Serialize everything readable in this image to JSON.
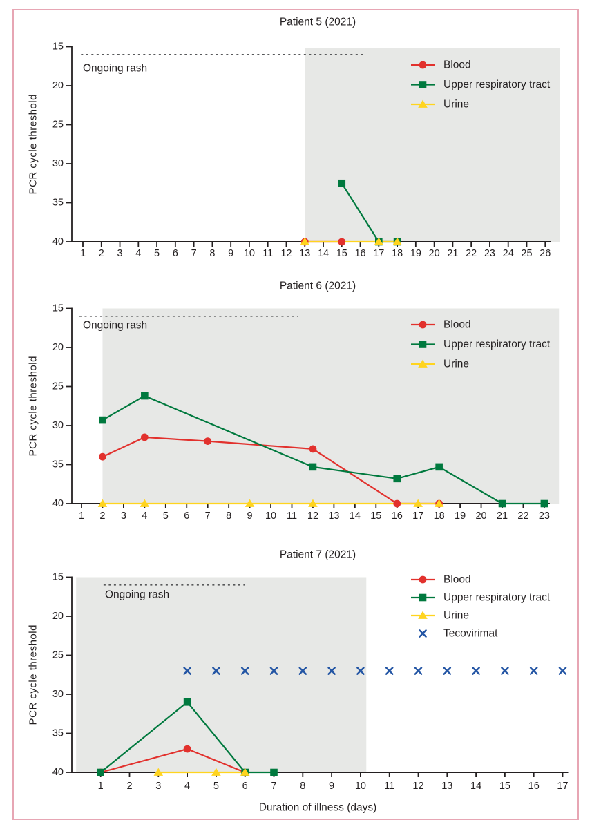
{
  "figure": {
    "y_axis_label": "PCR cycle threshold",
    "x_axis_label": "Duration of illness (days)",
    "rash_annotation": "Ongoing rash",
    "colors": {
      "blood": "#e2312d",
      "upper_respiratory_tract": "#00793e",
      "urine": "#ffd41f",
      "tecovirimat": "#2355a4",
      "shaded_region": "#e7e8e6",
      "frame_border": "#e7a6b4",
      "axis_text": "#231f20",
      "rash_dash": "#57585a"
    }
  },
  "chart_data": [
    {
      "type": "line",
      "title": "Patient 5 (2021)",
      "xlabel": "",
      "ylabel": "PCR cycle threshold",
      "ylim": [
        15,
        40
      ],
      "y_axis_reversed": true,
      "y_ticks": [
        15,
        20,
        25,
        30,
        35,
        40
      ],
      "x_days": 26,
      "shaded_region": {
        "from_day": 13,
        "to_day": 26.8
      },
      "ongoing_rash": {
        "label": "Ongoing rash",
        "from_day": 0.9,
        "to_day": 16.2,
        "ct_level": 16
      },
      "legend_position": "upper right on shaded region",
      "series": [
        {
          "name": "Blood",
          "marker": "circle",
          "color": "#e2312d",
          "line": true,
          "points": [
            [
              13,
              40
            ],
            [
              15,
              40
            ]
          ]
        },
        {
          "name": "Upper respiratory tract",
          "marker": "square",
          "color": "#00793e",
          "line": true,
          "points": [
            [
              15,
              32.5
            ],
            [
              17,
              40
            ],
            [
              18,
              40
            ]
          ]
        },
        {
          "name": "Urine",
          "marker": "triangle",
          "color": "#ffd41f",
          "line": true,
          "points": [
            [
              13,
              40
            ],
            [
              17,
              40
            ],
            [
              18,
              40
            ]
          ]
        }
      ]
    },
    {
      "type": "line",
      "title": "Patient 6 (2021)",
      "xlabel": "",
      "ylabel": "PCR cycle threshold",
      "ylim": [
        15,
        40
      ],
      "y_axis_reversed": true,
      "y_ticks": [
        15,
        20,
        25,
        30,
        35,
        40
      ],
      "x_days": 23,
      "shaded_region": {
        "from_day": 2,
        "to_day": 23.7
      },
      "ongoing_rash": {
        "label": "Ongoing rash",
        "from_day": 0.9,
        "to_day": 11.3,
        "ct_level": 16
      },
      "legend_position": "upper right on shaded region",
      "series": [
        {
          "name": "Blood",
          "marker": "circle",
          "color": "#e2312d",
          "line": true,
          "points": [
            [
              2,
              34
            ],
            [
              4,
              31.5
            ],
            [
              7,
              32
            ],
            [
              12,
              33
            ],
            [
              16,
              40
            ],
            [
              18,
              40
            ]
          ]
        },
        {
          "name": "Upper respiratory tract",
          "marker": "square",
          "color": "#00793e",
          "line": true,
          "points": [
            [
              2,
              29.3
            ],
            [
              4,
              26.2
            ],
            [
              12,
              35.3
            ],
            [
              16,
              36.8
            ],
            [
              18,
              35.3
            ],
            [
              21,
              40
            ],
            [
              23,
              40
            ]
          ]
        },
        {
          "name": "Urine",
          "marker": "triangle",
          "color": "#ffd41f",
          "line": true,
          "points": [
            [
              2,
              40
            ],
            [
              4,
              40
            ],
            [
              9,
              40
            ],
            [
              12,
              40
            ],
            [
              17,
              40
            ],
            [
              18,
              40
            ]
          ]
        }
      ]
    },
    {
      "type": "line",
      "title": "Patient 7 (2021)",
      "xlabel": "Duration of illness (days)",
      "ylabel": "PCR cycle threshold",
      "ylim": [
        15,
        40
      ],
      "y_axis_reversed": true,
      "y_ticks": [
        15,
        20,
        25,
        30,
        35,
        40
      ],
      "x_days": 17,
      "shaded_region": {
        "from_day": 0.15,
        "to_day": 10.2
      },
      "ongoing_rash": {
        "label": "Ongoing rash",
        "from_day": 1.1,
        "to_day": 6,
        "ct_level": 16
      },
      "legend_position": "upper right on white background",
      "series": [
        {
          "name": "Blood",
          "marker": "circle",
          "color": "#e2312d",
          "line": true,
          "points": [
            [
              1,
              40
            ],
            [
              4,
              37
            ],
            [
              6,
              40
            ]
          ]
        },
        {
          "name": "Upper respiratory tract",
          "marker": "square",
          "color": "#00793e",
          "line": true,
          "points": [
            [
              1,
              40
            ],
            [
              4,
              31
            ],
            [
              6,
              40
            ],
            [
              7,
              40
            ]
          ]
        },
        {
          "name": "Urine",
          "marker": "triangle",
          "color": "#ffd41f",
          "line": true,
          "points": [
            [
              3,
              40
            ],
            [
              5,
              40
            ],
            [
              6,
              40
            ]
          ]
        },
        {
          "name": "Tecovirimat",
          "marker": "x",
          "color": "#2355a4",
          "line": false,
          "points": [
            [
              4,
              27
            ],
            [
              5,
              27
            ],
            [
              6,
              27
            ],
            [
              7,
              27
            ],
            [
              8,
              27
            ],
            [
              9,
              27
            ],
            [
              10,
              27
            ],
            [
              11,
              27
            ],
            [
              12,
              27
            ],
            [
              13,
              27
            ],
            [
              14,
              27
            ],
            [
              15,
              27
            ],
            [
              16,
              27
            ],
            [
              17,
              27
            ]
          ]
        }
      ]
    }
  ]
}
